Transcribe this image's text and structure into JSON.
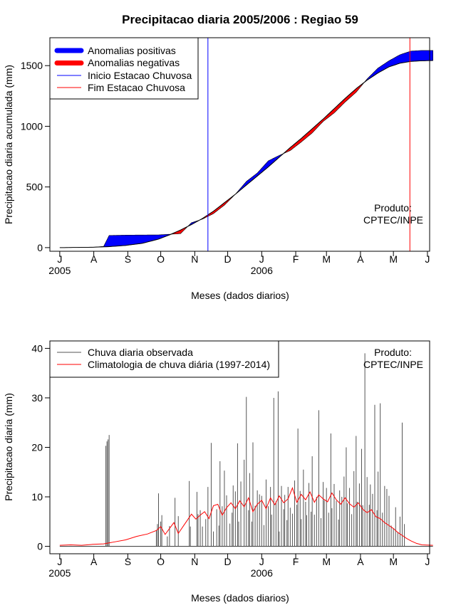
{
  "chart_data": [
    {
      "type": "area",
      "title": "Precipitacao diaria 2005/2006 : Regiao 59",
      "ylabel": "Precipitacao diaria acumulada (mm)",
      "xlabel": "Meses (dados diarios)",
      "ylim": [
        -30,
        1730
      ],
      "yticks": [
        0,
        500,
        1000,
        1500
      ],
      "xlim_days": [
        -9,
        337
      ],
      "month_ticks": [
        {
          "label": "J",
          "day": 0
        },
        {
          "label": "A",
          "day": 31
        },
        {
          "label": "S",
          "day": 62
        },
        {
          "label": "O",
          "day": 92
        },
        {
          "label": "N",
          "day": 123
        },
        {
          "label": "D",
          "day": 153
        },
        {
          "label": "J",
          "day": 184
        },
        {
          "label": "F",
          "day": 215
        },
        {
          "label": "M",
          "day": 243
        },
        {
          "label": "A",
          "day": 274
        },
        {
          "label": "M",
          "day": 304
        },
        {
          "label": "J",
          "day": 335
        }
      ],
      "year_labels": [
        {
          "label": "2005",
          "day": 0
        },
        {
          "label": "2006",
          "day": 184
        }
      ],
      "legend": {
        "position": "top-left",
        "entries": [
          {
            "label": "Anomalias positivas",
            "color": "#0000ff",
            "kind": "thick"
          },
          {
            "label": "Anomalias negativas",
            "color": "#ff0000",
            "kind": "thick"
          },
          {
            "label": "Inicio Estacao Chuvosa",
            "color": "#0000ff",
            "kind": "thin"
          },
          {
            "label": "Fim Estacao Chuvosa",
            "color": "#ff0000",
            "kind": "thin"
          }
        ]
      },
      "vlines": [
        {
          "name": "inicio",
          "day": 135,
          "color": "#0000ff"
        },
        {
          "name": "fim",
          "day": 319,
          "color": "#ff0000"
        }
      ],
      "annotation": [
        "Produto:",
        "CPTEC/INPE"
      ],
      "series": [
        {
          "name": "climatologia_acumulada",
          "days": [
            0,
            30,
            45,
            60,
            75,
            90,
            100,
            110,
            120,
            130,
            140,
            150,
            160,
            170,
            180,
            190,
            200,
            210,
            220,
            230,
            240,
            250,
            260,
            270,
            280,
            290,
            300,
            310,
            320,
            330,
            340
          ],
          "values": [
            0,
            3,
            8,
            18,
            35,
            70,
            105,
            145,
            190,
            240,
            300,
            370,
            440,
            515,
            590,
            665,
            745,
            825,
            900,
            980,
            1060,
            1145,
            1230,
            1310,
            1380,
            1440,
            1490,
            1520,
            1535,
            1540,
            1542
          ]
        },
        {
          "name": "observada_acumulada",
          "days": [
            0,
            30,
            40,
            45,
            60,
            75,
            90,
            100,
            110,
            120,
            130,
            140,
            150,
            160,
            170,
            180,
            190,
            200,
            210,
            220,
            230,
            240,
            250,
            260,
            270,
            280,
            290,
            300,
            310,
            320,
            330,
            340
          ],
          "values": [
            0,
            3,
            10,
            100,
            103,
            104,
            105,
            110,
            115,
            205,
            235,
            280,
            350,
            440,
            545,
            615,
            715,
            760,
            800,
            870,
            945,
            1040,
            1110,
            1200,
            1280,
            1390,
            1480,
            1540,
            1590,
            1620,
            1625,
            1625
          ]
        }
      ]
    },
    {
      "type": "bar",
      "ylabel": "Precipitacao diaria (mm)",
      "xlabel": "Meses (dados diarios)",
      "ylim": [
        -1.5,
        41.5
      ],
      "yticks": [
        0,
        10,
        20,
        30,
        40
      ],
      "xlim_days": [
        -9,
        337
      ],
      "month_ticks": [
        {
          "label": "J",
          "day": 0
        },
        {
          "label": "A",
          "day": 31
        },
        {
          "label": "S",
          "day": 62
        },
        {
          "label": "O",
          "day": 92
        },
        {
          "label": "N",
          "day": 123
        },
        {
          "label": "D",
          "day": 153
        },
        {
          "label": "J",
          "day": 184
        },
        {
          "label": "F",
          "day": 215
        },
        {
          "label": "M",
          "day": 243
        },
        {
          "label": "A",
          "day": 274
        },
        {
          "label": "M",
          "day": 304
        },
        {
          "label": "J",
          "day": 335
        }
      ],
      "year_labels": [
        {
          "label": "2005",
          "day": 0
        },
        {
          "label": "2006",
          "day": 184
        }
      ],
      "legend": {
        "position": "top-left",
        "entries": [
          {
            "label": "Chuva diaria observada",
            "color": "#555555",
            "kind": "thin"
          },
          {
            "label": "Climatologia de chuva diária (1997-2014)",
            "color": "#ff0000",
            "kind": "thin"
          }
        ]
      },
      "annotation": [
        "Produto:",
        "CPTEC/INPE"
      ],
      "series": [
        {
          "name": "chuva_observada",
          "days": [
            42,
            43,
            44,
            45,
            88,
            89,
            90,
            92,
            93,
            98,
            100,
            105,
            108,
            118,
            119,
            125,
            126,
            128,
            130,
            133,
            135,
            138,
            140,
            143,
            145,
            146,
            148,
            150,
            152,
            155,
            157,
            158,
            160,
            162,
            163,
            165,
            168,
            170,
            172,
            173,
            175,
            176,
            178,
            180,
            182,
            184,
            186,
            188,
            190,
            192,
            193,
            195,
            197,
            199,
            200,
            202,
            204,
            205,
            207,
            208,
            210,
            212,
            214,
            216,
            217,
            219,
            220,
            222,
            224,
            225,
            227,
            229,
            230,
            232,
            234,
            236,
            238,
            240,
            241,
            243,
            245,
            247,
            248,
            250,
            252,
            254,
            255,
            257,
            259,
            261,
            262,
            264,
            266,
            268,
            270,
            271,
            273,
            275,
            276,
            278,
            280,
            282,
            283,
            285,
            287,
            289,
            290,
            292,
            294,
            296,
            298,
            300,
            302,
            304,
            306,
            308,
            310,
            312,
            314
          ],
          "values": [
            20.3,
            21.2,
            21.6,
            22.5,
            3.2,
            4.5,
            10.7,
            5.0,
            6.3,
            2.0,
            4.1,
            9.8,
            6.1,
            13.2,
            4.0,
            11.0,
            6.5,
            7.3,
            4.0,
            5.5,
            12.0,
            20.9,
            3.0,
            7.5,
            4.2,
            17.2,
            8.1,
            15.3,
            10.3,
            4.6,
            6.8,
            12.3,
            11.1,
            20.8,
            5.0,
            13.1,
            17.5,
            30.2,
            7.3,
            14.8,
            5.0,
            21.0,
            8.2,
            11.3,
            10.5,
            10.2,
            4.3,
            13.5,
            8.1,
            12.0,
            6.4,
            30.0,
            9.1,
            31.3,
            3.0,
            12.2,
            7.5,
            10.4,
            5.3,
            12.0,
            7.8,
            6.6,
            13.3,
            8.4,
            23.8,
            11.2,
            5.5,
            15.5,
            9.0,
            6.3,
            12.8,
            7.0,
            18.2,
            6.4,
            10.0,
            27.5,
            5.7,
            13.0,
            9.3,
            11.8,
            6.8,
            22.8,
            7.7,
            12.6,
            9.2,
            5.4,
            11.3,
            10.0,
            14.1,
            20.0,
            8.7,
            11.8,
            6.5,
            15.2,
            22.3,
            9.0,
            12.7,
            19.7,
            8.3,
            39.0,
            14.0,
            8.4,
            12.5,
            10.6,
            28.6,
            7.3,
            15.1,
            28.9,
            6.8,
            12.2,
            11.6,
            10.2,
            4.2,
            3.6,
            7.9,
            2.9,
            6.0,
            25.0,
            4.5
          ]
        },
        {
          "name": "climatologia_diaria",
          "days": [
            0,
            10,
            20,
            30,
            40,
            50,
            60,
            70,
            80,
            88,
            92,
            96,
            100,
            104,
            108,
            112,
            116,
            120,
            124,
            128,
            132,
            136,
            140,
            144,
            148,
            152,
            156,
            160,
            164,
            168,
            172,
            176,
            180,
            184,
            188,
            192,
            196,
            200,
            204,
            208,
            212,
            216,
            220,
            224,
            228,
            232,
            236,
            240,
            244,
            248,
            252,
            256,
            260,
            264,
            268,
            272,
            276,
            280,
            284,
            288,
            292,
            296,
            300,
            304,
            308,
            312,
            316,
            320,
            325,
            330,
            340
          ],
          "values": [
            0.2,
            0.3,
            0.2,
            0.4,
            0.5,
            0.9,
            1.3,
            2.0,
            2.5,
            3.2,
            4.0,
            2.4,
            3.6,
            4.8,
            2.6,
            3.9,
            5.2,
            6.5,
            5.5,
            6.3,
            7.0,
            5.6,
            8.2,
            8.5,
            6.3,
            7.8,
            8.8,
            7.6,
            9.2,
            8.0,
            9.8,
            7.0,
            8.5,
            9.3,
            7.6,
            9.8,
            8.4,
            10.2,
            8.8,
            9.6,
            11.8,
            8.9,
            10.5,
            9.4,
            11.0,
            8.9,
            10.4,
            9.6,
            9.0,
            10.8,
            9.4,
            8.5,
            9.8,
            8.6,
            7.9,
            8.8,
            7.5,
            6.8,
            7.4,
            6.0,
            5.6,
            4.8,
            4.2,
            3.6,
            2.8,
            2.2,
            1.6,
            1.1,
            0.6,
            0.3,
            0.2
          ]
        }
      ]
    }
  ]
}
